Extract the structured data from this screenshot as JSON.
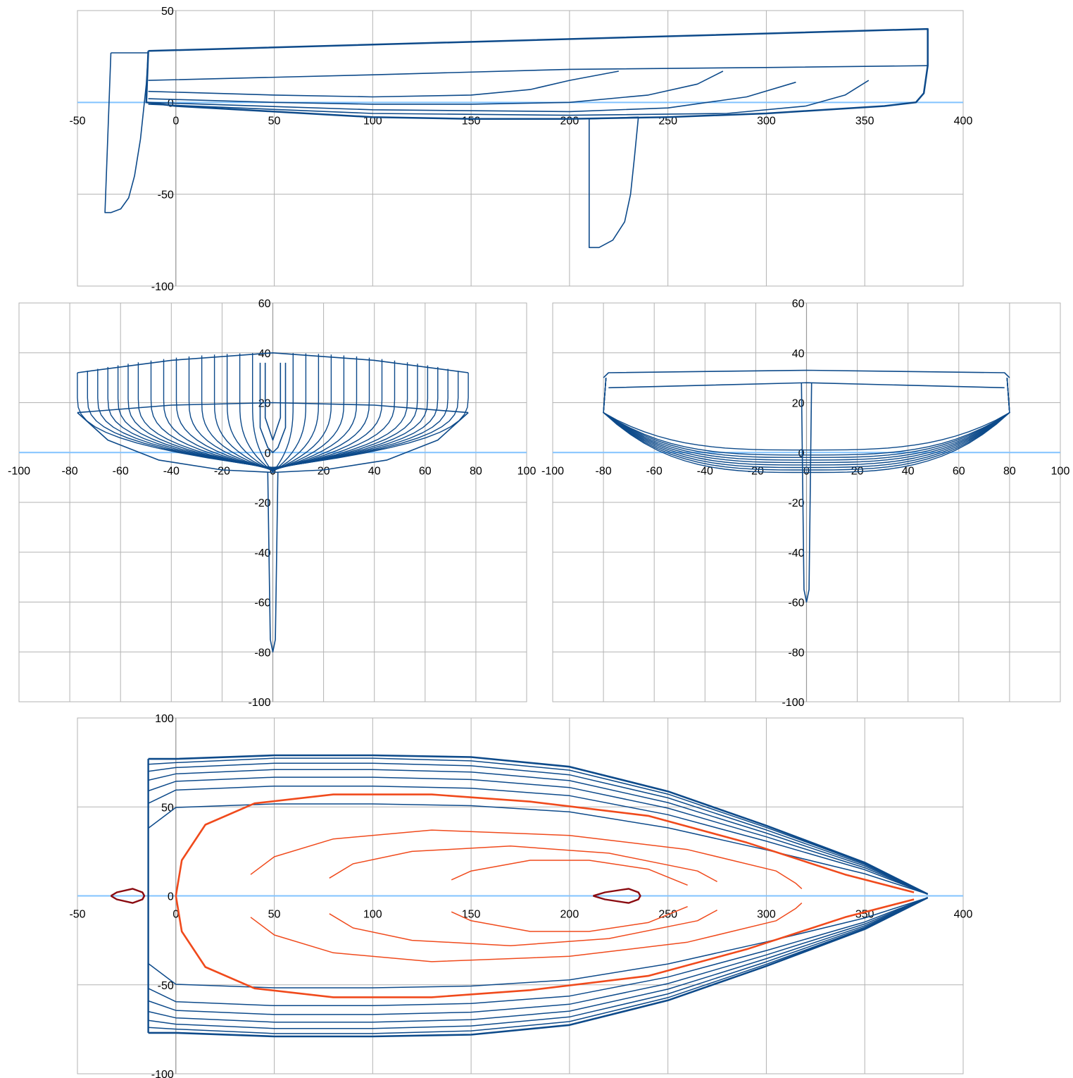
{
  "chart_data": [
    {
      "id": "profile",
      "type": "line",
      "title": "",
      "xlabel": "",
      "ylabel": "",
      "xlim": [
        -50,
        400
      ],
      "ylim": [
        -100,
        50
      ],
      "grid": true,
      "x_ticks": [
        "-50",
        "0",
        "50",
        "100",
        "150",
        "200",
        "250",
        "300",
        "350",
        "400"
      ],
      "y_ticks": [
        "50",
        "0",
        "-50",
        "-100"
      ],
      "colors": {
        "hull": "#0d4a8a",
        "axis": "#82c3ff"
      },
      "series": [
        {
          "points": [
            [
              -14,
              28
            ],
            [
              382,
              40
            ],
            [
              382,
              20
            ],
            [
              380,
              5
            ],
            [
              376,
              0
            ],
            [
              360,
              -2
            ],
            [
              300,
              -6
            ],
            [
              250,
              -8
            ],
            [
              200,
              -9
            ],
            [
              150,
              -9
            ],
            [
              100,
              -8
            ],
            [
              50,
              -5
            ],
            [
              0,
              -2
            ],
            [
              -15,
              0
            ],
            [
              -14,
              28
            ]
          ]
        },
        {
          "points": [
            [
              -14,
              12
            ],
            [
              100,
              15
            ],
            [
              200,
              18
            ],
            [
              300,
              19
            ],
            [
              382,
              20
            ]
          ]
        },
        {
          "points": [
            [
              -14,
              6
            ],
            [
              50,
              4
            ],
            [
              100,
              3
            ],
            [
              150,
              4
            ],
            [
              180,
              7
            ],
            [
              200,
              12
            ],
            [
              225,
              17
            ]
          ]
        },
        {
          "points": [
            [
              -14,
              2
            ],
            [
              50,
              0
            ],
            [
              100,
              -1
            ],
            [
              150,
              -1
            ],
            [
              200,
              0
            ],
            [
              240,
              4
            ],
            [
              265,
              10
            ],
            [
              278,
              17
            ]
          ]
        },
        {
          "points": [
            [
              -14,
              0
            ],
            [
              100,
              -4
            ],
            [
              200,
              -5
            ],
            [
              250,
              -3
            ],
            [
              290,
              3
            ],
            [
              315,
              11
            ]
          ]
        },
        {
          "points": [
            [
              -14,
              -1
            ],
            [
              100,
              -6
            ],
            [
              200,
              -7
            ],
            [
              280,
              -6
            ],
            [
              320,
              -2
            ],
            [
              340,
              4
            ],
            [
              352,
              12
            ]
          ]
        },
        {
          "points": [
            [
              -33,
              27
            ],
            [
              -14,
              27
            ],
            [
              -15,
              10
            ],
            [
              -18,
              -20
            ],
            [
              -21,
              -40
            ],
            [
              -24,
              -52
            ],
            [
              -28,
              -58
            ],
            [
              -33,
              -60
            ],
            [
              -36,
              -60
            ],
            [
              -33,
              27
            ]
          ]
        },
        {
          "points": [
            [
              210,
              -9
            ],
            [
              235,
              -8
            ],
            [
              233,
              -30
            ],
            [
              231,
              -50
            ],
            [
              228,
              -65
            ],
            [
              222,
              -75
            ],
            [
              215,
              -79
            ],
            [
              210,
              -79
            ],
            [
              210,
              -9
            ]
          ]
        }
      ]
    },
    {
      "id": "body-plan-left",
      "type": "line",
      "title": "",
      "xlabel": "",
      "ylabel": "",
      "xlim": [
        -100,
        100
      ],
      "ylim": [
        -100,
        60
      ],
      "grid": true,
      "x_ticks": [
        "-100",
        "-80",
        "-60",
        "-40",
        "-20",
        "0",
        "20",
        "40",
        "60",
        "80",
        "100"
      ],
      "y_ticks": [
        "60",
        "40",
        "20",
        "0",
        "-20",
        "-40",
        "-60",
        "-80",
        "-100"
      ],
      "colors": {
        "hull": "#0d4a8a"
      },
      "series": [
        {
          "points": [
            [
              -77,
              32
            ],
            [
              -40,
              37
            ],
            [
              0,
              40
            ],
            [
              40,
              37
            ],
            [
              77,
              32
            ]
          ]
        },
        {
          "points": [
            [
              -77,
              16
            ],
            [
              -40,
              19
            ],
            [
              0,
              20
            ],
            [
              40,
              19
            ],
            [
              77,
              16
            ]
          ]
        },
        {
          "points": [
            [
              -77,
              16
            ],
            [
              -65,
              5
            ],
            [
              -45,
              -3
            ],
            [
              -20,
              -7
            ],
            [
              0,
              -8
            ],
            [
              20,
              -7
            ],
            [
              45,
              -3
            ],
            [
              65,
              5
            ],
            [
              77,
              16
            ]
          ]
        },
        {
          "points": [
            [
              -2,
              -8
            ],
            [
              -1,
              -75
            ],
            [
              0,
              -80
            ],
            [
              1,
              -75
            ],
            [
              2,
              -8
            ]
          ]
        },
        {
          "points": [
            [
              -5,
              36
            ],
            [
              -5,
              10
            ],
            [
              -2,
              2
            ],
            [
              0,
              0
            ],
            [
              2,
              2
            ],
            [
              5,
              10
            ],
            [
              5,
              36
            ]
          ]
        },
        {
          "points": [
            [
              -3,
              36
            ],
            [
              -3,
              14
            ],
            [
              0,
              5
            ],
            [
              3,
              14
            ],
            [
              3,
              36
            ]
          ]
        }
      ],
      "station_half_widths": [
        77,
        73,
        69,
        65,
        61,
        57,
        53,
        48,
        43,
        38,
        33,
        28,
        23,
        18,
        13,
        8
      ]
    },
    {
      "id": "body-plan-right",
      "type": "line",
      "title": "",
      "xlabel": "",
      "ylabel": "",
      "xlim": [
        -100,
        100
      ],
      "ylim": [
        -100,
        60
      ],
      "grid": true,
      "x_ticks": [
        "-100",
        "-80",
        "-60",
        "-40",
        "-20",
        "0",
        "20",
        "40",
        "60",
        "80",
        "100"
      ],
      "y_ticks": [
        "60",
        "40",
        "20",
        "0",
        "-20",
        "-40",
        "-60",
        "-80",
        "-100"
      ],
      "colors": {
        "hull": "#0d4a8a"
      },
      "series": [
        {
          "points": [
            [
              -80,
              30
            ],
            [
              -78,
              32
            ],
            [
              0,
              33
            ],
            [
              78,
              32
            ],
            [
              80,
              30
            ]
          ]
        },
        {
          "points": [
            [
              -78,
              26
            ],
            [
              0,
              28
            ],
            [
              78,
              26
            ]
          ]
        },
        {
          "points": [
            [
              -2,
              28
            ],
            [
              -1,
              -55
            ],
            [
              0,
              -60
            ],
            [
              1,
              -55
            ],
            [
              2,
              28
            ]
          ]
        }
      ],
      "section_depths": [
        1,
        -1,
        -2,
        -3,
        -4,
        -5,
        -6,
        -7,
        -8
      ]
    },
    {
      "id": "plan",
      "type": "line",
      "title": "",
      "xlabel": "",
      "ylabel": "",
      "xlim": [
        -50,
        400
      ],
      "ylim": [
        -100,
        100
      ],
      "grid": true,
      "x_ticks": [
        "-50",
        "0",
        "50",
        "100",
        "150",
        "200",
        "250",
        "300",
        "350",
        "400"
      ],
      "y_ticks": [
        "100",
        "50",
        "0",
        "-50",
        "-100"
      ],
      "colors": {
        "hull": "#0d4a8a",
        "waterline": "#f04a1c",
        "foil": "#8a0a10"
      },
      "hull_widths": [
        77,
        74,
        70,
        65,
        59,
        52,
        38
      ],
      "waterlines": [
        {
          "points": [
            [
              0,
              0
            ],
            [
              3,
              20
            ],
            [
              15,
              40
            ],
            [
              40,
              52
            ],
            [
              80,
              57
            ],
            [
              130,
              57
            ],
            [
              180,
              53
            ],
            [
              240,
              45
            ],
            [
              290,
              30
            ],
            [
              340,
              12
            ],
            [
              375,
              2
            ]
          ],
          "bold": true
        },
        {
          "points": [
            [
              38,
              12
            ],
            [
              50,
              22
            ],
            [
              80,
              32
            ],
            [
              130,
              37
            ],
            [
              200,
              34
            ],
            [
              260,
              26
            ],
            [
              305,
              14
            ],
            [
              315,
              7
            ],
            [
              318,
              4
            ]
          ],
          "bold": false
        },
        {
          "points": [
            [
              78,
              10
            ],
            [
              90,
              18
            ],
            [
              120,
              25
            ],
            [
              170,
              28
            ],
            [
              220,
              24
            ],
            [
              265,
              14
            ],
            [
              275,
              8
            ]
          ],
          "bold": false
        },
        {
          "points": [
            [
              140,
              9
            ],
            [
              150,
              14
            ],
            [
              180,
              20
            ],
            [
              210,
              20
            ],
            [
              240,
              15
            ],
            [
              260,
              6
            ]
          ],
          "bold": false
        }
      ],
      "foils": [
        {
          "points": [
            [
              -33,
              0
            ],
            [
              -30,
              2
            ],
            [
              -22,
              4
            ],
            [
              -17,
              2
            ],
            [
              -16,
              0
            ],
            [
              -17,
              -2
            ],
            [
              -22,
              -4
            ],
            [
              -30,
              -2
            ],
            [
              -33,
              0
            ]
          ]
        },
        {
          "points": [
            [
              212,
              0
            ],
            [
              218,
              2
            ],
            [
              230,
              4
            ],
            [
              235,
              2
            ],
            [
              236,
              0
            ],
            [
              235,
              -2
            ],
            [
              230,
              -4
            ],
            [
              218,
              -2
            ],
            [
              212,
              0
            ]
          ]
        }
      ]
    }
  ]
}
